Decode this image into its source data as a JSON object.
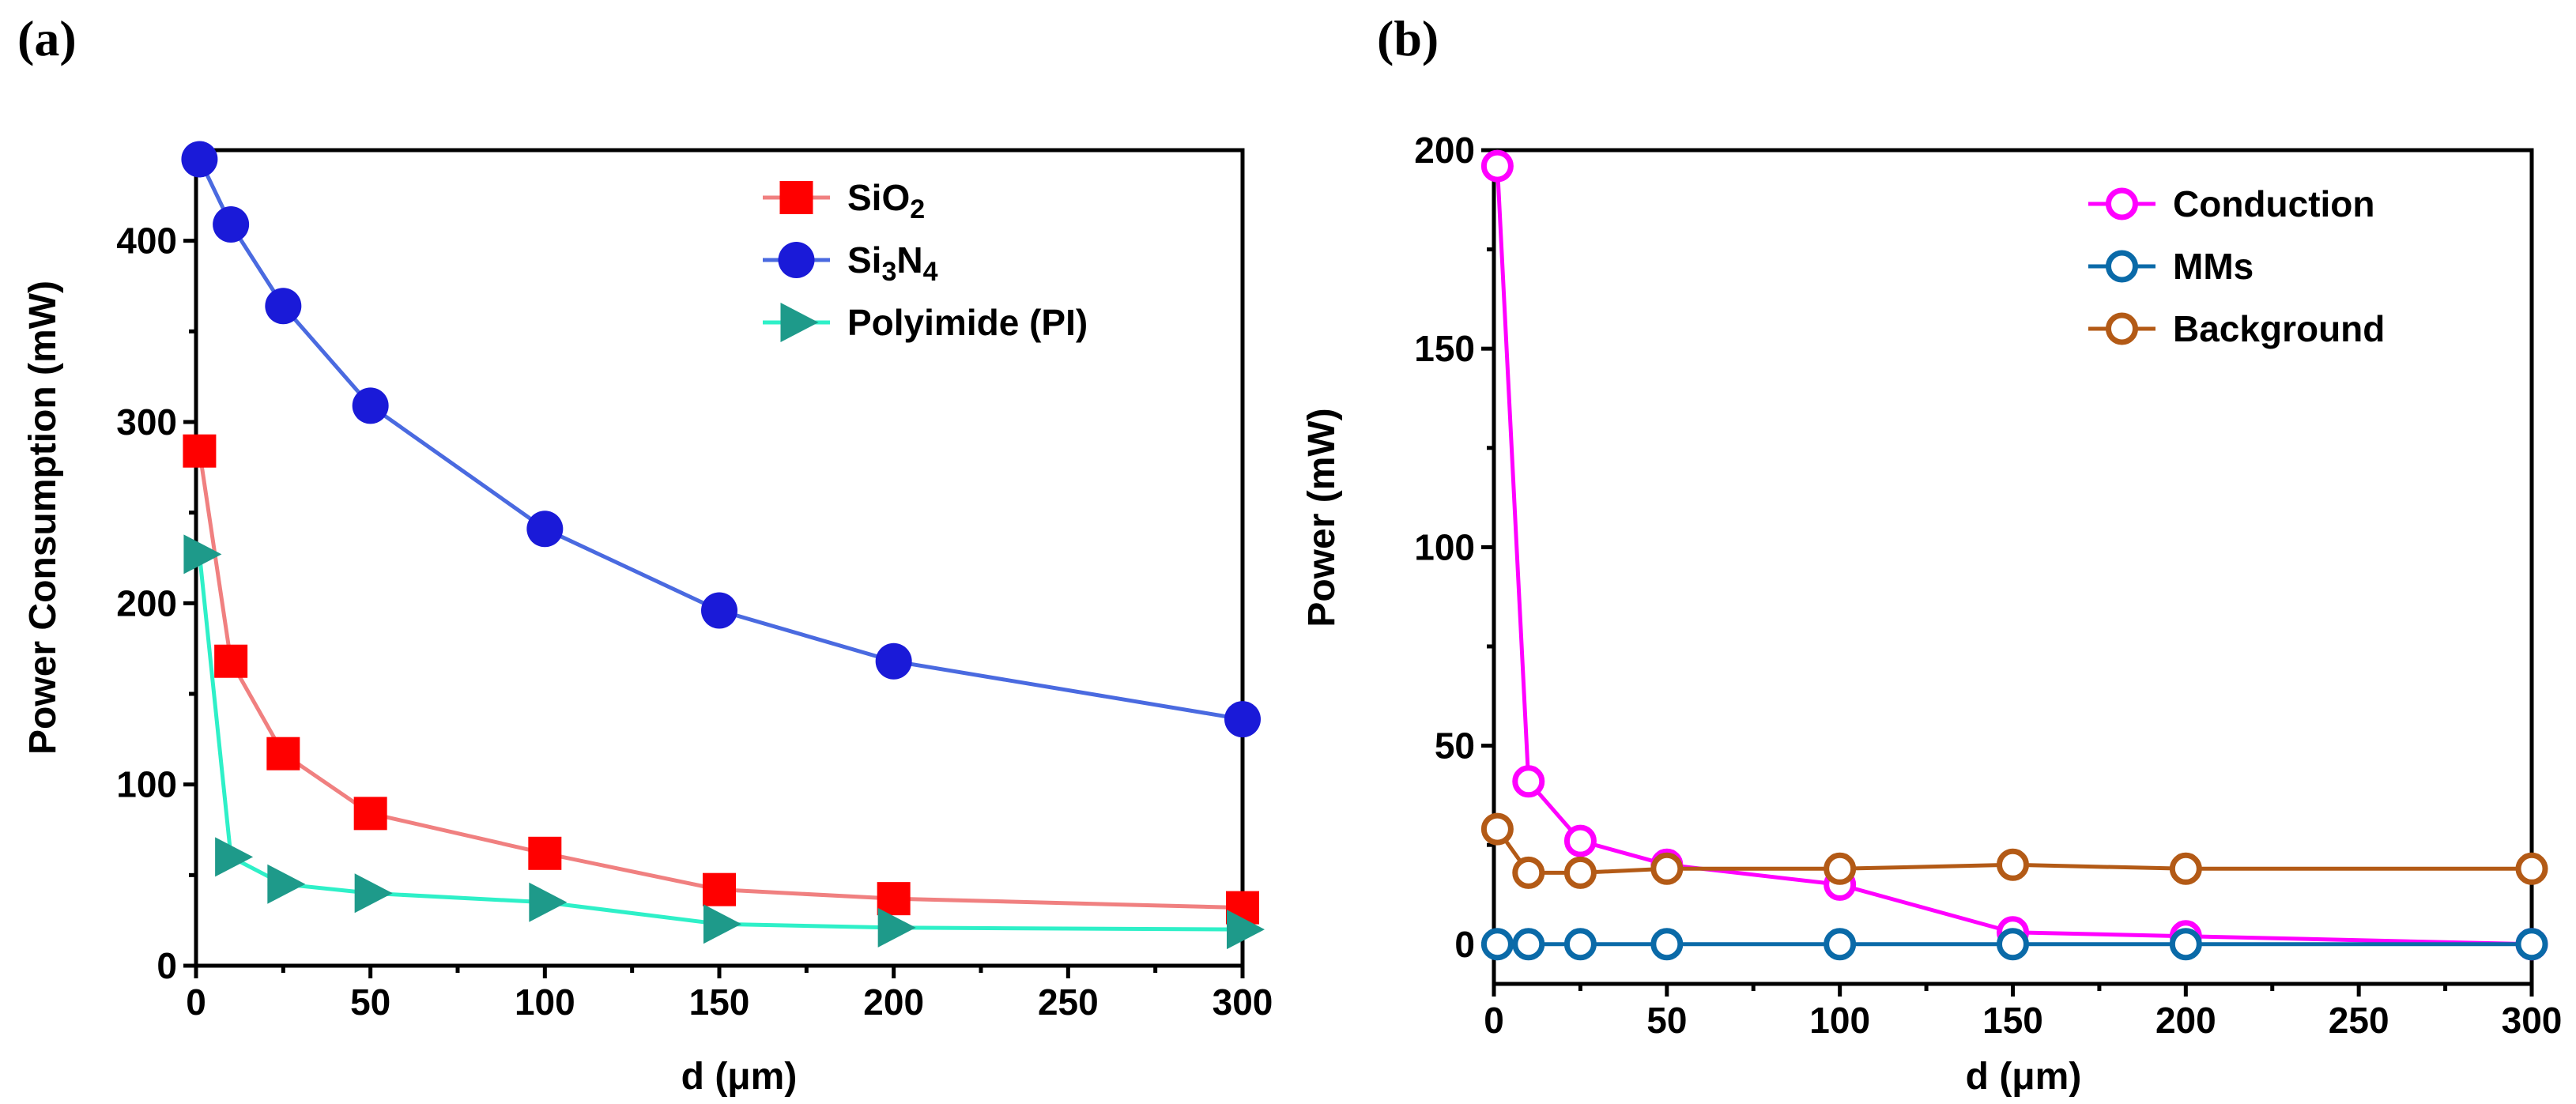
{
  "chart_data": [
    {
      "panel_label": "(a)",
      "type": "line",
      "xlabel": "d  (μm)",
      "ylabel": "Power Consumption (mW)",
      "xlim": [
        0,
        300
      ],
      "ylim": [
        0,
        450
      ],
      "xticks": [
        0,
        50,
        100,
        150,
        200,
        250,
        300
      ],
      "yticks": [
        0,
        100,
        200,
        300,
        400
      ],
      "grid": false,
      "legend_position": "top-right",
      "x": [
        1,
        10,
        25,
        50,
        100,
        150,
        200,
        300
      ],
      "series": [
        {
          "name": "SiO2",
          "label_parts": [
            [
              "Si",
              ""
            ],
            [
              "O",
              ""
            ],
            [
              "2",
              "sub"
            ]
          ],
          "color": "#ff0000",
          "line_color": "#f08080",
          "marker": "square",
          "values": [
            284,
            168,
            117,
            84,
            62,
            42,
            37,
            32
          ]
        },
        {
          "name": "Si3N4",
          "label_parts": [
            [
              "Si",
              ""
            ],
            [
              "3",
              "sub"
            ],
            [
              "N",
              ""
            ],
            [
              "4",
              "sub"
            ]
          ],
          "color": "#1a1ad8",
          "line_color": "#4a6ae0",
          "marker": "circle",
          "values": [
            445,
            409,
            364,
            309,
            241,
            196,
            168,
            136
          ]
        },
        {
          "name": "Polyimide (PI)",
          "label_parts": [
            [
              "Polyimide (PI)",
              ""
            ]
          ],
          "color": "#1e9a8a",
          "line_color": "#2ef0c8",
          "marker": "triangle-right",
          "values": [
            227,
            60,
            45,
            40,
            35,
            23,
            21,
            20
          ]
        }
      ]
    },
    {
      "panel_label": "(b)",
      "type": "line",
      "xlabel": "d  (μm)",
      "ylabel": "Power (mW)",
      "xlim": [
        0,
        300
      ],
      "ylim": [
        -10,
        200
      ],
      "xticks": [
        0,
        50,
        100,
        150,
        200,
        250,
        300
      ],
      "yticks": [
        0,
        50,
        100,
        150,
        200
      ],
      "grid": false,
      "legend_position": "top-right",
      "x": [
        1,
        10,
        25,
        50,
        100,
        150,
        200,
        300
      ],
      "series": [
        {
          "name": "Conduction",
          "label_parts": [
            [
              "Conduction",
              ""
            ]
          ],
          "color": "#ff00ff",
          "line_color": "#ff00ff",
          "marker": "open-circle",
          "values": [
            196,
            41,
            26,
            20,
            15,
            3,
            2,
            0
          ]
        },
        {
          "name": "MMs",
          "label_parts": [
            [
              "MMs",
              ""
            ]
          ],
          "color": "#0a6aa8",
          "line_color": "#0a6aa8",
          "marker": "open-circle",
          "values": [
            0,
            0,
            0,
            0,
            0,
            0,
            0,
            0
          ]
        },
        {
          "name": "Background",
          "label_parts": [
            [
              "Background",
              ""
            ]
          ],
          "color": "#b35a16",
          "line_color": "#b35a16",
          "marker": "open-circle",
          "values": [
            29,
            18,
            18,
            19,
            19,
            20,
            19,
            19
          ]
        }
      ]
    }
  ]
}
